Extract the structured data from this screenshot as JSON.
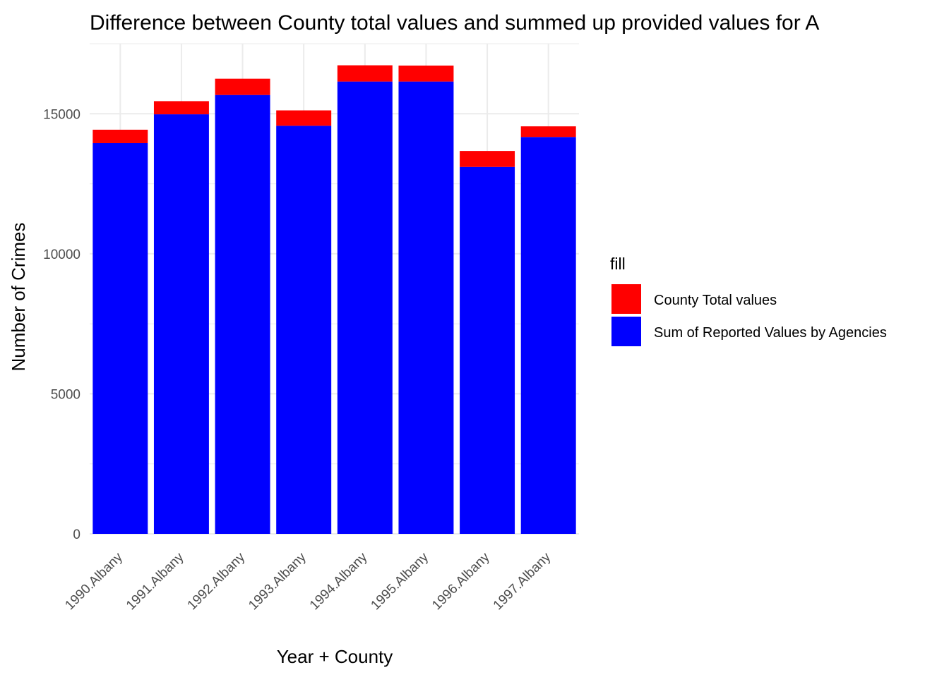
{
  "chart_data": {
    "type": "bar",
    "stacked": true,
    "title": "Difference between County total values and summed up provided values for A",
    "xlabel": "Year + County",
    "ylabel": "Number of Crimes",
    "categories": [
      "1990.Albany",
      "1991.Albany",
      "1992.Albany",
      "1993.Albany",
      "1994.Albany",
      "1995.Albany",
      "1996.Albany",
      "1997.Albany"
    ],
    "series": [
      {
        "name": "Sum of Reported Values by Agencies",
        "color": "#0000ff",
        "values": [
          13950,
          14980,
          15670,
          14570,
          16150,
          16150,
          13100,
          14170
        ]
      },
      {
        "name": "County Total values",
        "color": "#ff0000",
        "values": [
          480,
          470,
          580,
          550,
          580,
          570,
          570,
          380
        ]
      }
    ],
    "ylim": [
      0,
      17500
    ],
    "yticks": [
      0,
      5000,
      10000,
      15000
    ],
    "grid": true,
    "legend": {
      "title": "fill",
      "position": "right",
      "items": [
        {
          "label": "County Total values",
          "color": "#ff0000"
        },
        {
          "label": "Sum of Reported Values by Agencies",
          "color": "#0000ff"
        }
      ]
    }
  }
}
